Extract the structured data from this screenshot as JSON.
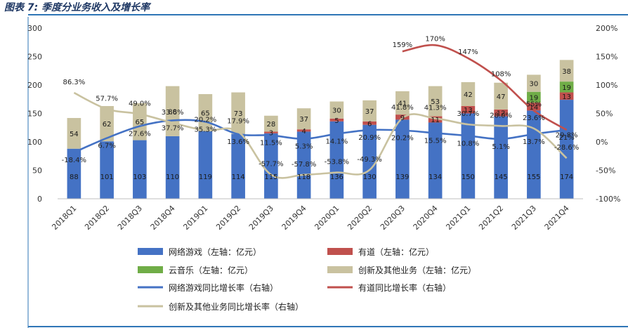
{
  "caption": "图表 7: 季度分业务收入及增长率",
  "chart_data": {
    "type": "bar",
    "stacked": true,
    "categories": [
      "2018Q1",
      "2018Q2",
      "2018Q3",
      "2018Q4",
      "2019Q1",
      "2019Q2",
      "2019Q3",
      "2019Q4",
      "2020Q1",
      "2020Q2",
      "2020Q3",
      "2020Q4",
      "2021Q1",
      "2021Q2",
      "2021Q3",
      "2021Q4"
    ],
    "ylim_left": [
      0,
      300
    ],
    "yticks_left": [
      "0",
      "50",
      "100",
      "150",
      "200",
      "250",
      "300"
    ],
    "ylim_right": [
      -100,
      200
    ],
    "yticks_right": [
      "-100%",
      "-50%",
      "0%",
      "50%",
      "100%",
      "150%",
      "200%"
    ],
    "bar_series": [
      {
        "name": "网络游戏（左轴：亿元）",
        "color": "#4472C4",
        "values": [
          88,
          101,
          103,
          110,
          119,
          114,
          115,
          118,
          136,
          130,
          139,
          134,
          150,
          145,
          155,
          174
        ],
        "labels": [
          "88",
          "101",
          "103",
          "110",
          "119",
          "114",
          "115",
          "118",
          "136",
          "130",
          "139",
          "134",
          "150",
          "145",
          "155",
          "174"
        ]
      },
      {
        "name": "有道（左轴：亿元）",
        "color": "#C0504D",
        "values": [
          0,
          0,
          0,
          0,
          0,
          0,
          3,
          4,
          5,
          6,
          9,
          11,
          13,
          12,
          14,
          13
        ],
        "labels": [
          "",
          "",
          "",
          "",
          "",
          "",
          "3",
          "4",
          "5",
          "6",
          "9",
          "11",
          "13",
          "12",
          "14",
          "13"
        ]
      },
      {
        "name": "云音乐（左轴：亿元）",
        "color": "#70AD47",
        "values": [
          0,
          0,
          0,
          0,
          0,
          0,
          0,
          0,
          0,
          0,
          0,
          0,
          0,
          0,
          19,
          19
        ],
        "labels": [
          "",
          "",
          "",
          "",
          "",
          "",
          "",
          "",
          "",
          "",
          "",
          "",
          "",
          "",
          "19",
          "19"
        ]
      },
      {
        "name": "创新及其他业务（左轴：亿元）",
        "color": "#C9C2A0",
        "values": [
          54,
          62,
          65,
          88,
          65,
          73,
          28,
          37,
          30,
          37,
          41,
          53,
          42,
          47,
          30,
          38
        ],
        "labels": [
          "54",
          "62",
          "65",
          "88",
          "65",
          "73",
          "28",
          "37",
          "30",
          "37",
          "41",
          "53",
          "42",
          "47",
          "30",
          "38"
        ]
      }
    ],
    "line_series": [
      {
        "name": "网络游戏同比增长率（右轴）",
        "color": "#4472C4",
        "values": [
          -18.4,
          6.7,
          27.6,
          37.7,
          35.3,
          13.6,
          11.5,
          5.3,
          14.1,
          20.9,
          20.2,
          15.5,
          10.8,
          5.1,
          13.7,
          21
        ],
        "labels": [
          "-18.4%",
          "6.7%",
          "27.6%",
          "37.7%",
          "35.3%",
          "13.6%",
          "11.5%",
          "5.3%",
          "14.1%",
          "20.9%",
          "20.2%",
          "15.5%",
          "10.8%",
          "5.1%",
          "13.7%",
          "21%"
        ]
      },
      {
        "name": "有道同比增长率（右轴）",
        "color": "#C0504D",
        "values": [
          null,
          null,
          null,
          null,
          null,
          null,
          null,
          null,
          null,
          null,
          159,
          170,
          147,
          108,
          55,
          21
        ],
        "labels": [
          "",
          "",
          "",
          "",
          "",
          "",
          "",
          "",
          "",
          "",
          "159%",
          "170%",
          "147%",
          "108%",
          "55%",
          ""
        ]
      },
      {
        "name": "创新及其他业务同比增长率（右轴）",
        "color": "#C9C2A0",
        "values": [
          86.3,
          57.7,
          49.0,
          33.6,
          20.2,
          17.9,
          -57.7,
          -57.8,
          -53.8,
          -49.3,
          41.8,
          41.3,
          30.7,
          28.0,
          23.6,
          -28.6
        ],
        "labels": [
          "86.3%",
          "57.7%",
          "49.0%",
          "33.6%",
          "20.2%",
          "17.9%",
          "-57.7%",
          "-57.8%",
          "-53.8%",
          "-49.3%",
          "41.8%",
          "41.3%",
          "30.7%",
          "28.0%",
          "23.6%",
          "-28.6%"
        ]
      }
    ],
    "extra_labels": [
      "29.8%"
    ],
    "legend_position": "bottom"
  },
  "legend": [
    {
      "label": "网络游戏（左轴：亿元）",
      "kind": "bar",
      "color": "#4472C4"
    },
    {
      "label": "有道（左轴：亿元）",
      "kind": "bar",
      "color": "#C0504D"
    },
    {
      "label": "云音乐（左轴：亿元）",
      "kind": "bar",
      "color": "#70AD47"
    },
    {
      "label": "创新及其他业务（左轴：亿元）",
      "kind": "bar",
      "color": "#C9C2A0"
    },
    {
      "label": "网络游戏同比增长率（右轴）",
      "kind": "line",
      "color": "#4472C4"
    },
    {
      "label": "有道同比增长率（右轴）",
      "kind": "line",
      "color": "#C0504D"
    },
    {
      "label": "创新及其他业务同比增长率（右轴）",
      "kind": "line",
      "color": "#C9C2A0"
    }
  ]
}
